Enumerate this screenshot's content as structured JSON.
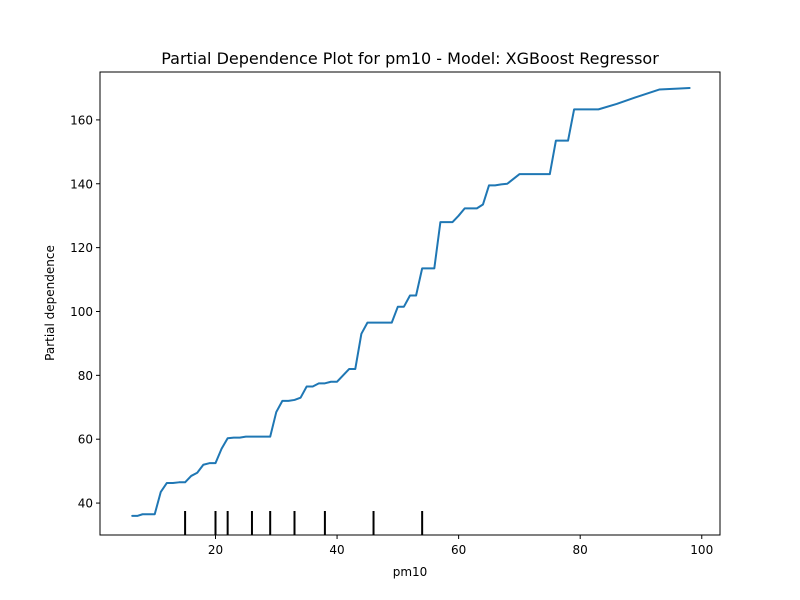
{
  "chart_data": {
    "type": "line",
    "title": "Partial Dependence Plot for pm10 - Model: XGBoost Regressor",
    "xlabel": "pm10",
    "ylabel": "Partial dependence",
    "xlim": [
      1,
      103
    ],
    "ylim": [
      30,
      175
    ],
    "xticks": [
      20,
      40,
      60,
      80,
      100
    ],
    "yticks": [
      40,
      60,
      80,
      100,
      120,
      140,
      160
    ],
    "grid": false,
    "line_color": "#1f77b4",
    "series": [
      {
        "x": [
          6.3,
          7.2,
          8.0,
          8.8,
          10.0,
          11.0,
          12.0,
          13.0,
          14.0,
          15.0,
          16.0,
          17.0,
          18.0,
          19.0,
          20.0,
          21.0,
          22.0,
          23.0,
          24.0,
          25.0,
          26.0,
          27.0,
          28.0,
          29.0,
          30.0,
          31.0,
          32.0,
          33.0,
          34.0,
          35.0,
          36.0,
          37.0,
          38.0,
          39.0,
          40.0,
          41.0,
          42.0,
          43.0,
          44.0,
          45.0,
          46.0,
          47.0,
          48.0,
          49.0,
          50.0,
          51.0,
          52.0,
          53.0,
          54.0,
          55.0,
          56.0,
          57.0,
          58.0,
          59.0,
          60.0,
          61.0,
          62.0,
          63.0,
          64.0,
          65.0,
          66.0,
          67.0,
          68.0,
          70.0,
          71.0,
          72.0,
          73.0,
          74.0,
          75.0,
          76.0,
          77.0,
          78.0,
          79.0,
          80.0,
          81.0,
          82.0,
          83.0,
          86.0,
          89.0,
          93.0,
          96.0,
          98.0
        ],
        "y": [
          36.0,
          36.0,
          36.5,
          36.5,
          36.5,
          43.5,
          46.3,
          46.3,
          46.5,
          46.5,
          48.5,
          49.5,
          52.0,
          52.5,
          52.5,
          57.0,
          60.3,
          60.5,
          60.5,
          60.8,
          60.8,
          60.8,
          60.8,
          60.8,
          68.5,
          72.0,
          72.0,
          72.3,
          73.0,
          76.5,
          76.5,
          77.5,
          77.5,
          78.0,
          78.0,
          80.0,
          82.0,
          82.0,
          93.0,
          96.5,
          96.5,
          96.5,
          96.5,
          96.5,
          101.5,
          101.5,
          105.0,
          105.0,
          113.5,
          113.5,
          113.5,
          128.0,
          128.0,
          128.0,
          130.0,
          132.3,
          132.3,
          132.3,
          133.5,
          139.5,
          139.5,
          139.8,
          140.0,
          143.0,
          143.0,
          143.0,
          143.0,
          143.0,
          143.0,
          153.5,
          153.5,
          153.5,
          163.3,
          163.3,
          163.3,
          163.3,
          163.3,
          165.0,
          167.0,
          169.5,
          169.8,
          170.0
        ]
      }
    ],
    "rug_deciles": [
      15,
      20,
      22,
      26,
      29,
      33,
      38,
      46,
      54
    ]
  }
}
